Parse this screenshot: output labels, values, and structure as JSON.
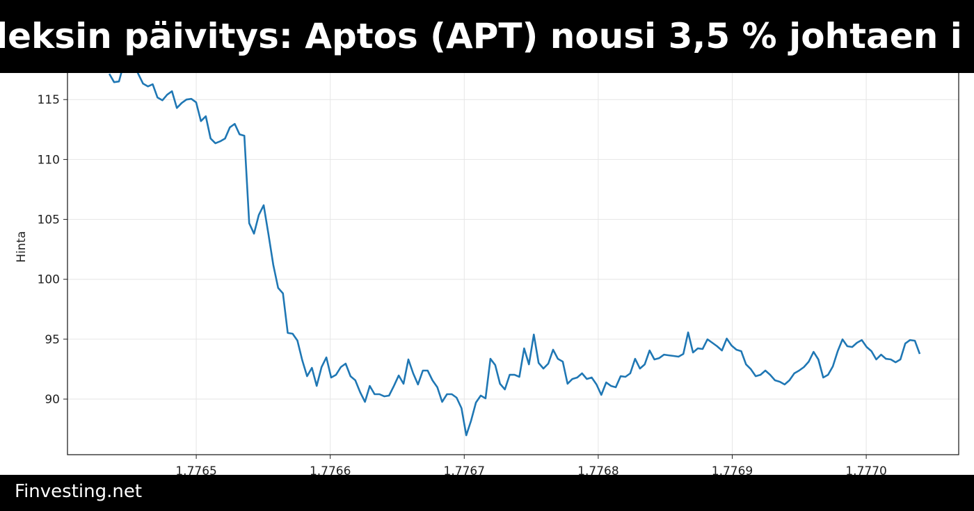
{
  "header": {
    "title": "leksin päivitys: Aptos (APT) nousi 3,5 % johtaen i"
  },
  "footer": {
    "brand": "Finvesting.net"
  },
  "chart_data": {
    "type": "line",
    "title": "",
    "xlabel": "",
    "ylabel": "Hinta",
    "xlim": [
      1.7764039,
      1.777069
    ],
    "ylim": [
      85.36,
      120.7
    ],
    "grid": true,
    "line_color": "#1f77b4",
    "x_ticks": [
      1.7765,
      1.7766,
      1.7767,
      1.7768,
      1.7769,
      1.777
    ],
    "x_tick_labels": [
      "1.7765",
      "1.7766",
      "1.7767",
      "1.7768",
      "1.7769",
      "1.7770"
    ],
    "y_ticks": [
      90,
      95,
      100,
      105,
      110,
      115
    ],
    "y_tick_labels": [
      "90",
      "95",
      "100",
      "105",
      "110",
      "115"
    ],
    "series": [
      {
        "x": [
          1.7764351,
          1.7764387,
          1.7764423,
          1.7764459,
          1.7764495,
          1.7764531,
          1.7764567,
          1.7764603,
          1.7764639,
          1.7764675,
          1.7764711,
          1.7764747,
          1.7764783,
          1.7764819,
          1.7764855,
          1.7764891,
          1.7764927,
          1.7764963,
          1.7764999,
          1.7765035,
          1.7765071,
          1.7765107,
          1.7765143,
          1.7765179,
          1.7765215,
          1.7765251,
          1.7765287,
          1.7765323,
          1.7765359,
          1.7765395,
          1.7765431,
          1.7765467,
          1.7765503,
          1.7765539,
          1.7765575,
          1.7765611,
          1.7765647,
          1.7765683,
          1.7765719,
          1.7765755,
          1.7765791,
          1.7765827,
          1.7765863,
          1.7765899,
          1.7765935,
          1.7765971,
          1.7766007,
          1.7766043,
          1.7766079,
          1.7766115,
          1.7766151,
          1.7766187,
          1.7766223,
          1.7766259,
          1.7766295,
          1.7766331,
          1.7766367,
          1.7766403,
          1.7766439,
          1.7766475,
          1.7766511,
          1.7766547,
          1.7766583,
          1.7766619,
          1.7766655,
          1.7766691,
          1.7766727,
          1.7766763,
          1.7766799,
          1.7766835,
          1.7766871,
          1.7766907,
          1.7766943,
          1.7766979,
          1.7767015,
          1.7767051,
          1.7767087,
          1.7767123,
          1.7767159,
          1.7767195,
          1.7767231,
          1.7767267,
          1.7767303,
          1.7767339,
          1.7767375,
          1.7767411,
          1.7767447,
          1.7767483,
          1.7767519,
          1.7767555,
          1.7767591,
          1.7767627,
          1.7767663,
          1.7767699,
          1.7767735,
          1.7767771,
          1.7767807,
          1.7767843,
          1.7767879,
          1.7767915,
          1.7767951,
          1.7767987,
          1.7768023,
          1.7768059,
          1.7768095,
          1.7768131,
          1.7768167,
          1.7768203,
          1.7768239,
          1.7768275,
          1.7768311,
          1.7768347,
          1.7768383,
          1.7768419,
          1.7768455,
          1.7768491,
          1.7768527,
          1.7768563,
          1.7768599,
          1.7768635,
          1.7768671,
          1.7768707,
          1.7768743,
          1.7768779,
          1.7768815,
          1.7768851,
          1.7768887,
          1.7768923,
          1.7768959,
          1.7768995,
          1.7769031,
          1.7769067,
          1.7769103,
          1.7769139,
          1.7769175,
          1.7769211,
          1.7769247,
          1.7769283,
          1.7769319,
          1.7769355,
          1.7769391,
          1.7769427,
          1.7769463,
          1.7769499,
          1.7769535,
          1.7769571,
          1.7769607,
          1.7769643,
          1.7769679,
          1.7769715,
          1.7769751,
          1.7769787,
          1.7769823,
          1.7769859,
          1.7769895,
          1.7769931,
          1.7769967,
          1.7770003,
          1.7770039,
          1.7770075,
          1.7770111,
          1.7770147,
          1.7770183,
          1.7770219,
          1.7770255,
          1.7770291,
          1.7770327,
          1.7770363,
          1.7770399
        ],
        "y": [
          117.15,
          116.45,
          116.51,
          118.0,
          118.5,
          118.0,
          117.15,
          116.33,
          116.1,
          116.28,
          115.17,
          114.94,
          115.41,
          115.7,
          114.3,
          114.71,
          115.0,
          115.06,
          114.77,
          113.2,
          113.61,
          111.75,
          111.35,
          111.52,
          111.75,
          112.68,
          112.97,
          112.1,
          111.98,
          104.68,
          103.81,
          105.37,
          106.18,
          103.75,
          101.2,
          99.28,
          98.82,
          95.52,
          95.46,
          94.88,
          93.25,
          91.91,
          92.61,
          91.1,
          92.67,
          93.48,
          91.8,
          92.03,
          92.67,
          92.96,
          91.91,
          91.57,
          90.58,
          89.77,
          91.1,
          90.41,
          90.41,
          90.23,
          90.29,
          91.1,
          91.97,
          91.28,
          93.31,
          92.15,
          91.22,
          92.38,
          92.38,
          91.57,
          90.99,
          89.77,
          90.41,
          90.41,
          90.12,
          89.25,
          86.98,
          88.2,
          89.71,
          90.29,
          90.06,
          93.36,
          92.84,
          91.28,
          90.81,
          92.03,
          92.03,
          91.86,
          94.23,
          92.9,
          95.39,
          93.02,
          92.55,
          92.96,
          94.12,
          93.36,
          93.13,
          91.28,
          91.68,
          91.8,
          92.15,
          91.68,
          91.8,
          91.22,
          90.35,
          91.39,
          91.1,
          90.99,
          91.91,
          91.86,
          92.15,
          93.36,
          92.55,
          92.9,
          94.06,
          93.31,
          93.42,
          93.71,
          93.65,
          93.6,
          93.54,
          93.77,
          95.57,
          93.89,
          94.23,
          94.18,
          94.99,
          94.7,
          94.41,
          94.06,
          95.05,
          94.47,
          94.12,
          94.0,
          92.9,
          92.49,
          91.91,
          92.03,
          92.38,
          92.03,
          91.57,
          91.45,
          91.22,
          91.57,
          92.15,
          92.38,
          92.67,
          93.13,
          93.94,
          93.31,
          91.8,
          92.03,
          92.73,
          94.0,
          94.99,
          94.41,
          94.35,
          94.7,
          94.93,
          94.35,
          94.0,
          93.31,
          93.71,
          93.36,
          93.31,
          93.07,
          93.31,
          94.64,
          94.93,
          94.87,
          93.77
        ]
      }
    ]
  }
}
